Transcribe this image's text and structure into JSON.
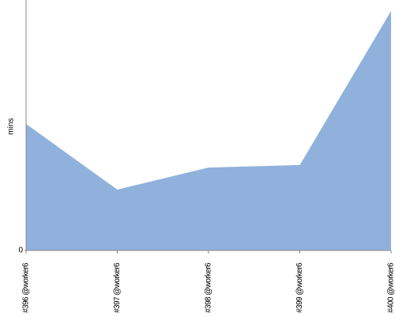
{
  "chart_data": {
    "type": "area",
    "y_label": "mins",
    "categories": [
      "#396 @worker6",
      "#397 @worker6",
      "#398 @worker6",
      "#399 @worker6",
      "#400 @worker6"
    ],
    "values": [
      50.5,
      24.3,
      33.1,
      34.1,
      95.6
    ],
    "color": "#8fb1dc",
    "ylim": [
      0,
      100
    ],
    "yticks": [
      0
    ]
  }
}
